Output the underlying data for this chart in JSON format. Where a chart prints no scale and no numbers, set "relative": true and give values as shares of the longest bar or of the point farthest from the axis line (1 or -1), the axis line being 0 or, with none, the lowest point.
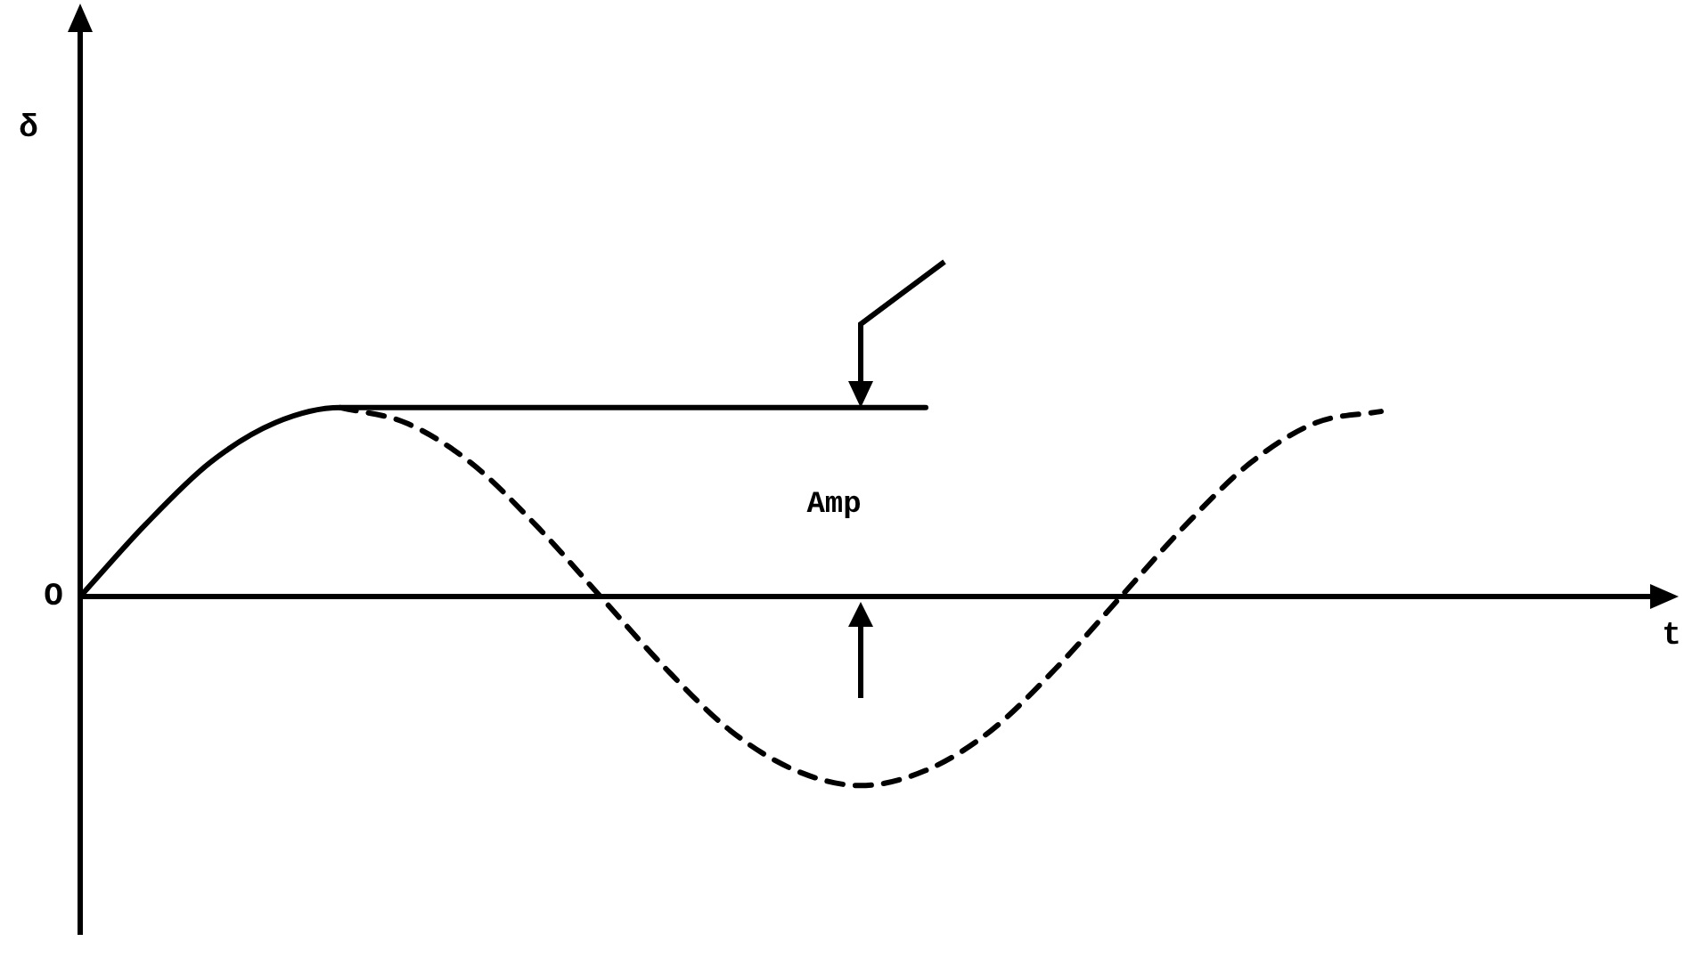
{
  "chart_data": {
    "type": "line",
    "relative": true,
    "xlabel": "t",
    "categories": [
      null,
      null,
      null,
      null,
      null,
      null,
      null,
      null,
      null,
      null,
      null,
      null,
      null,
      null,
      null,
      null,
      null,
      null,
      null,
      null,
      null,
      null,
      null,
      null,
      null
    ],
    "series": [
      {
        "color": "#000000",
        "line_style": "solid",
        "values": [
          0,
          0.38,
          0.71,
          0.92,
          1,
          1,
          1,
          1,
          1,
          1,
          1,
          1,
          1,
          1,
          null,
          null,
          null,
          null,
          null,
          null,
          null,
          null,
          null,
          null,
          null
        ]
      },
      {
        "color": "#000000",
        "line_style": "dashed",
        "values": [
          null,
          null,
          null,
          null,
          1,
          0.92,
          0.71,
          0.38,
          0,
          -0.38,
          -0.71,
          -0.92,
          -1,
          -0.92,
          -0.71,
          -0.38,
          0,
          0.38,
          0.71,
          0.92,
          0.98,
          null,
          null,
          null,
          null
        ]
      }
    ],
    "annotations": [
      "Amp",
      "O",
      "δ"
    ],
    "marker": "none",
    "legend": false
  }
}
